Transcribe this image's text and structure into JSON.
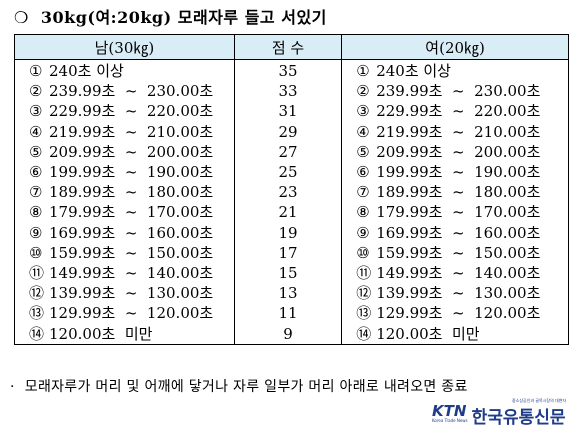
{
  "heading": {
    "bullet": "❍",
    "text": "30kg(여:20kg) 모래자루 들고 서있기"
  },
  "table": {
    "headers": [
      "남(30㎏)",
      "점 수",
      "여(20㎏)"
    ],
    "rows": [
      {
        "m_num": "①",
        "m_range": "240초 이상",
        "score": "35",
        "f_num": "①",
        "f_range": "240초 이상"
      },
      {
        "m_num": "②",
        "m_range": "239.99초  ~  230.00초",
        "score": "33",
        "f_num": "②",
        "f_range": "239.99초  ~  230.00초"
      },
      {
        "m_num": "③",
        "m_range": "229.99초  ~  220.00초",
        "score": "31",
        "f_num": "③",
        "f_range": "229.99초  ~  220.00초"
      },
      {
        "m_num": "④",
        "m_range": "219.99초  ~  210.00초",
        "score": "29",
        "f_num": "④",
        "f_range": "219.99초  ~  210.00초"
      },
      {
        "m_num": "⑤",
        "m_range": "209.99초  ~  200.00초",
        "score": "27",
        "f_num": "⑤",
        "f_range": "209.99초  ~  200.00초"
      },
      {
        "m_num": "⑥",
        "m_range": "199.99초  ~  190.00초",
        "score": "25",
        "f_num": "⑥",
        "f_range": "199.99초  ~  190.00초"
      },
      {
        "m_num": "⑦",
        "m_range": "189.99초  ~  180.00초",
        "score": "23",
        "f_num": "⑦",
        "f_range": "189.99초  ~  180.00초"
      },
      {
        "m_num": "⑧",
        "m_range": "179.99초  ~  170.00초",
        "score": "21",
        "f_num": "⑧",
        "f_range": "179.99초  ~  170.00초"
      },
      {
        "m_num": "⑨",
        "m_range": "169.99초  ~  160.00초",
        "score": "19",
        "f_num": "⑨",
        "f_range": "169.99초  ~  160.00초"
      },
      {
        "m_num": "⑩",
        "m_range": "159.99초  ~  150.00초",
        "score": "17",
        "f_num": "⑩",
        "f_range": "159.99초  ~  150.00초"
      },
      {
        "m_num": "⑪",
        "m_range": "149.99초  ~  140.00초",
        "score": "15",
        "f_num": "⑪",
        "f_range": "149.99초  ~  140.00초"
      },
      {
        "m_num": "⑫",
        "m_range": "139.99초  ~  130.00초",
        "score": "13",
        "f_num": "⑫",
        "f_range": "139.99초  ~  130.00초"
      },
      {
        "m_num": "⑬",
        "m_range": "129.99초  ~  120.00초",
        "score": "11",
        "f_num": "⑬",
        "f_range": "129.99초  ~  120.00초"
      },
      {
        "m_num": "⑭",
        "m_range": "120.00초  미만",
        "score": "9",
        "f_num": "⑭",
        "f_range": "120.00초  미만"
      }
    ]
  },
  "footnote": {
    "bullet": "·",
    "text": "모래자루가 머리 및 어깨에 닿거나 자루 일부가 머리 아래로 내려오면 종료"
  },
  "logo": {
    "brand": "KTN",
    "brand_sub": "Korea Trade News",
    "name": "한국유통신문",
    "tagline": "중소상공인과 골목시장의 대변자",
    "colors": {
      "primary": "#1f3c88",
      "accent": "#e4322b"
    }
  },
  "colors": {
    "header_bg": "#d9edf6"
  }
}
